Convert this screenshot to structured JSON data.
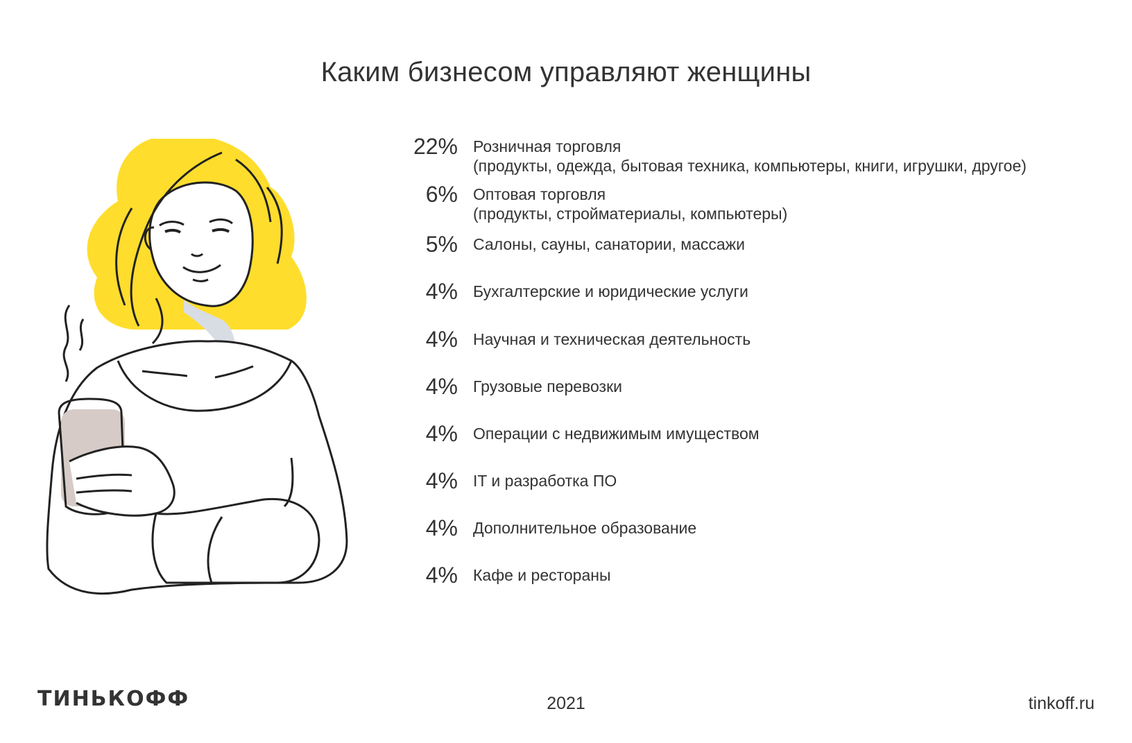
{
  "title": "Каким бизнесом управляют женщины",
  "colors": {
    "accent": "#FFDD2D",
    "line": "#222222",
    "shadow": "#D8DDE3",
    "cup": "#D6CBC6",
    "text": "#333333"
  },
  "items": [
    {
      "percent": "22%",
      "label": "Розничная торговля",
      "sublabel": "(продукты, одежда, бытовая техника, компьютеры, книги, игрушки, другое)"
    },
    {
      "percent": "6%",
      "label": "Оптовая торговля",
      "sublabel": "(продукты, стройматериалы, компьютеры)"
    },
    {
      "percent": "5%",
      "label": "Салоны, сауны, санатории, массажи"
    },
    {
      "percent": "4%",
      "label": "Бухгалтерские и юридические услуги"
    },
    {
      "percent": "4%",
      "label": "Научная и техническая деятельность"
    },
    {
      "percent": "4%",
      "label": "Грузовые перевозки"
    },
    {
      "percent": "4%",
      "label": "Операции с недвижимым имуществом"
    },
    {
      "percent": "4%",
      "label": "IT и разработка ПО"
    },
    {
      "percent": "4%",
      "label": "Дополнительное образование"
    },
    {
      "percent": "4%",
      "label": "Кафе и рестораны"
    }
  ],
  "footer": {
    "logo": "ТИНЬКОФФ",
    "year": "2021",
    "site": "tinkoff.ru"
  },
  "illustration": "woman-with-coffee"
}
